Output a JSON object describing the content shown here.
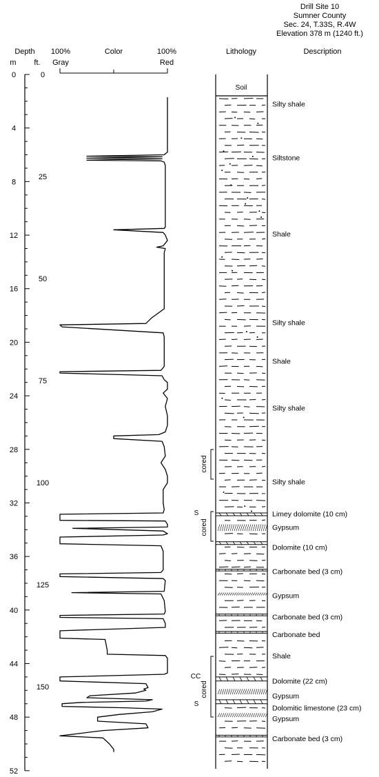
{
  "site": {
    "lines": [
      "Drill Site 10",
      "Sumner County",
      "Sec. 24, T.33S, R.4W",
      "Elevation 378 m (1240 ft.)"
    ]
  },
  "headers": {
    "depth": "Depth",
    "m": "m",
    "ft": "ft.",
    "gray_pct": "100%",
    "gray": "Gray",
    "color": "Color",
    "red_pct": "100%",
    "red": "Red",
    "lithology": "Lithology",
    "description": "Description"
  },
  "depth_axis": {
    "min_m": 0,
    "max_m": 52,
    "m_labels": [
      0,
      4,
      8,
      12,
      16,
      20,
      24,
      28,
      32,
      36,
      40,
      44,
      48,
      52
    ],
    "ft_labels": [
      0,
      25,
      50,
      75,
      100,
      125,
      150
    ]
  },
  "color_curve": {
    "min": 0,
    "max": 100,
    "points": [
      [
        1.7,
        100
      ],
      [
        5.8,
        100
      ],
      [
        6.0,
        97
      ],
      [
        6.1,
        25
      ],
      [
        6.15,
        95
      ],
      [
        6.25,
        25
      ],
      [
        6.3,
        95
      ],
      [
        6.4,
        25
      ],
      [
        6.45,
        94
      ],
      [
        6.55,
        97
      ],
      [
        6.8,
        98
      ],
      [
        11.4,
        98
      ],
      [
        11.5,
        97
      ],
      [
        11.6,
        50
      ],
      [
        11.8,
        96
      ],
      [
        12.0,
        98
      ],
      [
        12.4,
        100
      ],
      [
        12.8,
        96
      ],
      [
        12.9,
        90
      ],
      [
        13.0,
        98
      ],
      [
        13.3,
        97
      ],
      [
        17.5,
        97
      ],
      [
        18.2,
        85
      ],
      [
        18.6,
        80
      ],
      [
        18.7,
        0
      ],
      [
        18.85,
        2
      ],
      [
        19.3,
        96
      ],
      [
        19.6,
        97
      ],
      [
        21.8,
        97
      ],
      [
        22.1,
        94
      ],
      [
        22.2,
        0
      ],
      [
        22.3,
        0
      ],
      [
        22.5,
        95
      ],
      [
        22.8,
        97
      ],
      [
        23.0,
        100
      ],
      [
        23.5,
        100
      ],
      [
        23.8,
        96
      ],
      [
        24.2,
        100
      ],
      [
        24.8,
        98
      ],
      [
        25.5,
        100
      ],
      [
        26.2,
        100
      ],
      [
        26.7,
        98
      ],
      [
        26.9,
        92
      ],
      [
        27.0,
        50
      ],
      [
        27.2,
        50
      ],
      [
        27.4,
        95
      ],
      [
        27.8,
        97
      ],
      [
        28.5,
        98
      ],
      [
        29.0,
        94
      ],
      [
        29.5,
        98
      ],
      [
        30.0,
        100
      ],
      [
        30.5,
        100
      ],
      [
        31.0,
        96
      ],
      [
        31.5,
        96
      ],
      [
        32.0,
        96
      ],
      [
        32.5,
        97
      ],
      [
        32.75,
        96
      ],
      [
        32.85,
        0
      ],
      [
        33.3,
        0
      ],
      [
        33.35,
        98
      ],
      [
        33.6,
        100
      ],
      [
        33.8,
        100
      ],
      [
        33.9,
        12
      ],
      [
        34.1,
        96
      ],
      [
        34.3,
        100
      ],
      [
        34.4,
        96
      ],
      [
        34.55,
        0
      ],
      [
        35.05,
        0
      ],
      [
        35.2,
        94
      ],
      [
        35.6,
        96
      ],
      [
        37.0,
        96
      ],
      [
        37.2,
        94
      ],
      [
        37.3,
        0
      ],
      [
        37.5,
        0
      ],
      [
        37.65,
        96
      ],
      [
        37.8,
        98
      ],
      [
        38.6,
        97
      ],
      [
        38.7,
        11
      ],
      [
        38.8,
        94
      ],
      [
        39.3,
        97
      ],
      [
        40.1,
        98
      ],
      [
        40.3,
        97
      ],
      [
        40.4,
        0
      ],
      [
        40.55,
        0
      ],
      [
        40.65,
        96
      ],
      [
        41.0,
        98
      ],
      [
        41.3,
        98
      ],
      [
        41.55,
        0
      ],
      [
        42.1,
        0
      ],
      [
        42.2,
        42
      ],
      [
        43.0,
        44
      ],
      [
        43.3,
        44
      ],
      [
        43.4,
        98
      ],
      [
        43.6,
        100
      ],
      [
        44.7,
        100
      ],
      [
        44.8,
        97
      ],
      [
        45.0,
        0
      ],
      [
        45.3,
        0
      ],
      [
        45.5,
        80
      ],
      [
        45.8,
        82
      ],
      [
        45.9,
        78
      ],
      [
        46.0,
        80
      ],
      [
        46.2,
        70
      ],
      [
        46.4,
        28
      ],
      [
        46.55,
        25
      ],
      [
        46.7,
        86
      ],
      [
        46.8,
        80
      ],
      [
        46.9,
        20
      ],
      [
        47.0,
        2
      ],
      [
        47.2,
        2
      ],
      [
        47.3,
        60
      ],
      [
        47.4,
        95
      ],
      [
        47.6,
        86
      ],
      [
        47.8,
        55
      ],
      [
        48.0,
        35
      ],
      [
        48.3,
        35
      ],
      [
        48.5,
        80
      ],
      [
        48.8,
        82
      ],
      [
        49.0,
        40
      ],
      [
        49.2,
        20
      ],
      [
        49.4,
        0
      ],
      [
        49.55,
        40
      ],
      [
        50.0,
        46
      ],
      [
        50.4,
        50
      ],
      [
        50.6,
        50
      ]
    ]
  },
  "lithology": {
    "soil_label": "Soil",
    "log_top_m": 0,
    "log_bottom_m": 52
  },
  "descriptions": [
    {
      "depth_m": 2.2,
      "text": "Silty shale"
    },
    {
      "depth_m": 6.2,
      "text": "Siltstone"
    },
    {
      "depth_m": 11.9,
      "text": "Shale"
    },
    {
      "depth_m": 18.5,
      "text": "Silty shale"
    },
    {
      "depth_m": 21.4,
      "text": "Shale"
    },
    {
      "depth_m": 24.9,
      "text": "Silty shale"
    },
    {
      "depth_m": 30.4,
      "text": "Silty shale"
    },
    {
      "depth_m": 32.8,
      "text": "Limey dolomite (10 cm)"
    },
    {
      "depth_m": 33.8,
      "text": "Gypsum"
    },
    {
      "depth_m": 35.3,
      "text": "Dolomite (10 cm)"
    },
    {
      "depth_m": 37.1,
      "text": "Carbonate bed (3 cm)"
    },
    {
      "depth_m": 38.9,
      "text": "Gypsum"
    },
    {
      "depth_m": 40.5,
      "text": "Carbonate bed (3 cm)"
    },
    {
      "depth_m": 41.8,
      "text": "Carbonate bed"
    },
    {
      "depth_m": 43.4,
      "text": "Shale"
    },
    {
      "depth_m": 45.3,
      "text": "Dolomite (22 cm)"
    },
    {
      "depth_m": 46.4,
      "text": "Gypsum"
    },
    {
      "depth_m": 47.3,
      "text": "Dolomitic limestone (23 cm)"
    },
    {
      "depth_m": 48.1,
      "text": "Gypsum"
    },
    {
      "depth_m": 49.6,
      "text": "Carbonate bed (3 cm)"
    }
  ],
  "annotations": {
    "cored": "cored",
    "s": "S",
    "cc": "CC"
  }
}
